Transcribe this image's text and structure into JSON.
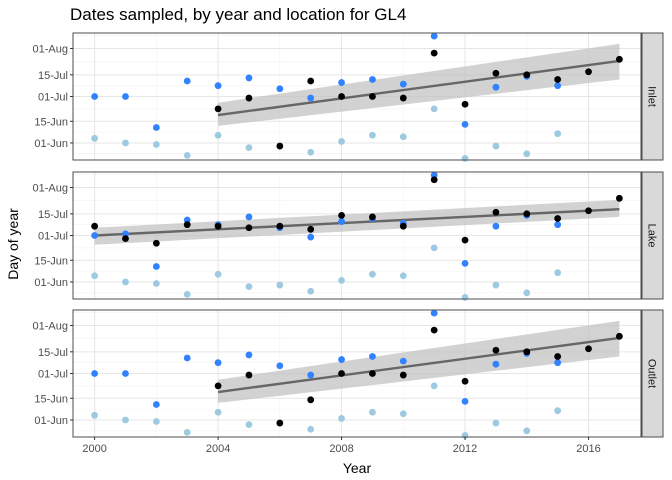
{
  "chart_data": {
    "type": "scatter",
    "title": "Dates sampled, by year and location for GL4",
    "xlabel": "Year",
    "ylabel": "Day of year",
    "xlim": [
      1999.3,
      2017.7
    ],
    "ylim": [
      141,
      223
    ],
    "x_ticks": [
      2000,
      2004,
      2008,
      2012,
      2016
    ],
    "y_ticks": [
      {
        "day": 152,
        "label": "01-Jun"
      },
      {
        "day": 166,
        "label": "15-Jun"
      },
      {
        "day": 182,
        "label": "01-Jul"
      },
      {
        "day": 196,
        "label": "15-Jul"
      },
      {
        "day": 213,
        "label": "01-Aug"
      }
    ],
    "grid": true,
    "colors": {
      "light_blue": "#9ecae1",
      "mid_blue": "#3182ff",
      "black": "#000000",
      "trend_line": "#666666",
      "ribbon": "#bfbfbf",
      "strip_fill": "#d9d9d9",
      "panel_border": "#4d4d4d",
      "grid_major": "#e6e6e6",
      "grid_minor": "#f2f2f2"
    },
    "series_colors": [
      "#9ecae1",
      "#3182ff",
      "#000000"
    ],
    "panels": [
      {
        "name": "Inlet",
        "light_blue": [
          [
            2000,
            155
          ],
          [
            2001,
            152
          ],
          [
            2002,
            151
          ],
          [
            2003,
            144
          ],
          [
            2004,
            157
          ],
          [
            2005,
            149
          ],
          [
            2007,
            146
          ],
          [
            2008,
            153
          ],
          [
            2009,
            157
          ],
          [
            2010,
            156
          ],
          [
            2011,
            174
          ],
          [
            2012,
            142
          ],
          [
            2013,
            150
          ],
          [
            2014,
            145
          ],
          [
            2015,
            158
          ]
        ],
        "mid_blue": [
          [
            2000,
            182
          ],
          [
            2001,
            182
          ],
          [
            2002,
            162
          ],
          [
            2003,
            192
          ],
          [
            2004,
            189
          ],
          [
            2005,
            194
          ],
          [
            2006,
            187
          ],
          [
            2007,
            181
          ],
          [
            2008,
            191
          ],
          [
            2009,
            193
          ],
          [
            2010,
            190
          ],
          [
            2011,
            221
          ],
          [
            2012,
            164
          ],
          [
            2013,
            188
          ],
          [
            2014,
            195
          ],
          [
            2015,
            189
          ]
        ],
        "black": [
          [
            2004,
            174
          ],
          [
            2005,
            181
          ],
          [
            2006,
            150
          ],
          [
            2007,
            192
          ],
          [
            2008,
            182
          ],
          [
            2009,
            182
          ],
          [
            2010,
            181
          ],
          [
            2011,
            210
          ],
          [
            2012,
            177
          ],
          [
            2013,
            197
          ],
          [
            2014,
            196
          ],
          [
            2015,
            193
          ],
          [
            2016,
            198
          ],
          [
            2017,
            206
          ]
        ],
        "trend": {
          "x": [
            2004,
            2017
          ],
          "y": [
            170,
            205
          ],
          "ribbon_lo": [
            163,
            193
          ],
          "ribbon_hi": [
            178,
            216
          ]
        }
      },
      {
        "name": "Lake",
        "light_blue": [
          [
            2000,
            156
          ],
          [
            2001,
            152
          ],
          [
            2002,
            151
          ],
          [
            2003,
            144
          ],
          [
            2004,
            157
          ],
          [
            2005,
            149
          ],
          [
            2006,
            150
          ],
          [
            2007,
            146
          ],
          [
            2008,
            153
          ],
          [
            2009,
            157
          ],
          [
            2010,
            156
          ],
          [
            2011,
            174
          ],
          [
            2012,
            142
          ],
          [
            2013,
            150
          ],
          [
            2014,
            145
          ],
          [
            2015,
            158
          ]
        ],
        "mid_blue": [
          [
            2000,
            182
          ],
          [
            2001,
            183
          ],
          [
            2002,
            162
          ],
          [
            2003,
            192
          ],
          [
            2004,
            189
          ],
          [
            2005,
            194
          ],
          [
            2006,
            187
          ],
          [
            2007,
            181
          ],
          [
            2008,
            191
          ],
          [
            2009,
            193
          ],
          [
            2010,
            190
          ],
          [
            2011,
            221
          ],
          [
            2012,
            164
          ],
          [
            2013,
            188
          ],
          [
            2014,
            195
          ],
          [
            2015,
            189
          ]
        ],
        "black": [
          [
            2000,
            188
          ],
          [
            2001,
            180
          ],
          [
            2002,
            177
          ],
          [
            2003,
            189
          ],
          [
            2004,
            188
          ],
          [
            2005,
            187
          ],
          [
            2006,
            188
          ],
          [
            2007,
            186
          ],
          [
            2008,
            195
          ],
          [
            2009,
            194
          ],
          [
            2010,
            188
          ],
          [
            2011,
            218
          ],
          [
            2012,
            179
          ],
          [
            2013,
            197
          ],
          [
            2014,
            196
          ],
          [
            2015,
            193
          ],
          [
            2016,
            198
          ],
          [
            2017,
            206
          ]
        ],
        "trend": {
          "x": [
            2000,
            2017
          ],
          "y": [
            182,
            199
          ],
          "ribbon_lo": [
            176,
            194
          ],
          "ribbon_hi": [
            187,
            205
          ]
        }
      },
      {
        "name": "Outlet",
        "light_blue": [
          [
            2000,
            155
          ],
          [
            2001,
            152
          ],
          [
            2002,
            151
          ],
          [
            2003,
            144
          ],
          [
            2004,
            157
          ],
          [
            2005,
            149
          ],
          [
            2007,
            146
          ],
          [
            2008,
            153
          ],
          [
            2009,
            157
          ],
          [
            2010,
            156
          ],
          [
            2011,
            174
          ],
          [
            2012,
            142
          ],
          [
            2013,
            150
          ],
          [
            2014,
            145
          ],
          [
            2015,
            158
          ]
        ],
        "mid_blue": [
          [
            2000,
            182
          ],
          [
            2001,
            182
          ],
          [
            2002,
            162
          ],
          [
            2003,
            192
          ],
          [
            2004,
            189
          ],
          [
            2005,
            194
          ],
          [
            2006,
            187
          ],
          [
            2007,
            181
          ],
          [
            2008,
            191
          ],
          [
            2009,
            193
          ],
          [
            2010,
            190
          ],
          [
            2011,
            221
          ],
          [
            2012,
            164
          ],
          [
            2013,
            188
          ],
          [
            2014,
            195
          ],
          [
            2015,
            189
          ]
        ],
        "black": [
          [
            2004,
            174
          ],
          [
            2005,
            181
          ],
          [
            2006,
            150
          ],
          [
            2007,
            165
          ],
          [
            2008,
            182
          ],
          [
            2009,
            182
          ],
          [
            2010,
            181
          ],
          [
            2011,
            210
          ],
          [
            2012,
            177
          ],
          [
            2013,
            197
          ],
          [
            2014,
            196
          ],
          [
            2015,
            193
          ],
          [
            2016,
            198
          ],
          [
            2017,
            206
          ]
        ],
        "trend": {
          "x": [
            2004,
            2017
          ],
          "y": [
            170,
            205
          ],
          "ribbon_lo": [
            163,
            193
          ],
          "ribbon_hi": [
            178,
            216
          ]
        }
      }
    ]
  }
}
